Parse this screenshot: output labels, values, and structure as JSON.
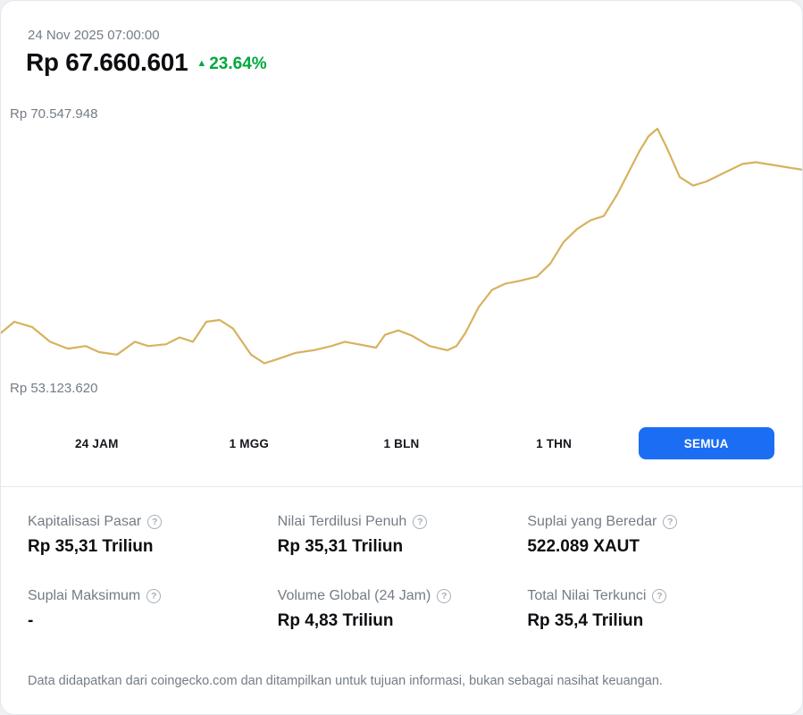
{
  "colors": {
    "accent": "#1b6ef3",
    "green": "#00a83e",
    "line": "#d7b25e"
  },
  "icons": {
    "up_arrow": "▲",
    "info": "?"
  },
  "header": {
    "timestamp": "24 Nov 2025 07:00:00",
    "price": "Rp 67.660.601",
    "change_percent": "23.64%",
    "change_direction": "up"
  },
  "chart": {
    "high_label": "Rp 70.547.948",
    "low_label": "Rp 53.123.620"
  },
  "chart_data": {
    "type": "line",
    "title": "",
    "y_unit": "Rp juta",
    "y_min": 53.12362,
    "y_max": 70.547948,
    "grid": false,
    "legend": false,
    "x": [
      0,
      1.67,
      3.89,
      6.12,
      8.34,
      10.57,
      12.24,
      14.46,
      16.69,
      18.35,
      20.58,
      22.25,
      23.92,
      25.58,
      27.25,
      28.92,
      31.15,
      32.81,
      34.48,
      36.71,
      38.93,
      41.16,
      42.83,
      44.49,
      46.72,
      47.83,
      49.5,
      51.17,
      53.39,
      55.62,
      56.73,
      57.84,
      59.51,
      61.18,
      62.85,
      64.52,
      66.74,
      68.41,
      70.08,
      71.75,
      73.41,
      75.08,
      76.75,
      77.86,
      79.53,
      80.65,
      81.76,
      82.87,
      84.54,
      86.21,
      87.88,
      90.1,
      92.32,
      93.99,
      96.77,
      100
    ],
    "values": [
      55.63,
      56.45,
      56.07,
      54.99,
      54.49,
      54.68,
      54.23,
      54.05,
      54.99,
      54.68,
      54.81,
      55.31,
      54.99,
      56.45,
      56.58,
      55.95,
      54.05,
      53.42,
      53.73,
      54.18,
      54.37,
      54.68,
      54.99,
      54.81,
      54.56,
      55.5,
      55.82,
      55.44,
      54.68,
      54.37,
      54.68,
      55.63,
      57.53,
      58.79,
      59.24,
      59.43,
      59.74,
      60.69,
      62.27,
      63.22,
      63.86,
      64.17,
      65.75,
      67.02,
      68.92,
      69.99,
      70.55,
      69.23,
      67.02,
      66.39,
      66.7,
      67.34,
      67.97,
      68.1,
      67.84,
      67.53
    ]
  },
  "ranges": [
    {
      "label": "24 JAM",
      "active": false
    },
    {
      "label": "1 MGG",
      "active": false
    },
    {
      "label": "1 BLN",
      "active": false
    },
    {
      "label": "1 THN",
      "active": false
    },
    {
      "label": "SEMUA",
      "active": true
    }
  ],
  "stats": [
    {
      "label": "Kapitalisasi Pasar",
      "value": "Rp 35,31 Triliun"
    },
    {
      "label": "Nilai Terdilusi Penuh",
      "value": "Rp 35,31 Triliun"
    },
    {
      "label": "Suplai yang Beredar",
      "value": "522.089 XAUT"
    },
    {
      "label": "Suplai Maksimum",
      "value": "-"
    },
    {
      "label": "Volume Global (24 Jam)",
      "value": "Rp 4,83 Triliun"
    },
    {
      "label": "Total Nilai Terkunci",
      "value": "Rp 35,4 Triliun"
    }
  ],
  "footer": {
    "disclaimer": "Data didapatkan dari coingecko.com dan ditampilkan untuk tujuan informasi, bukan sebagai nasihat keuangan."
  }
}
